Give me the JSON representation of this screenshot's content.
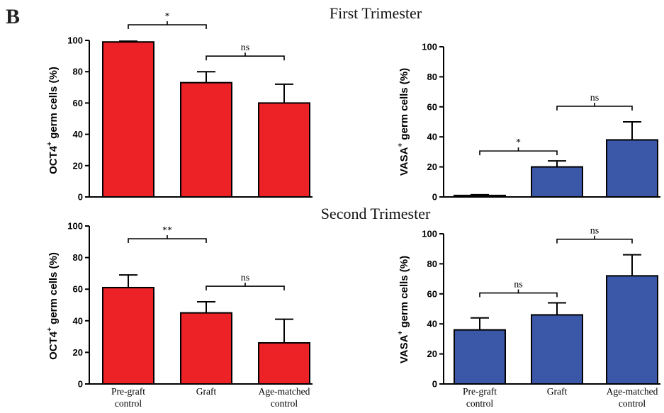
{
  "figure": {
    "panel_letter": "B",
    "sections": [
      {
        "title": "First Trimester"
      },
      {
        "title": "Second Trimester"
      }
    ],
    "colors": {
      "oct4": "#ec2227",
      "vasa": "#3b57a7"
    }
  },
  "chart_data": [
    {
      "id": "first-oct4",
      "type": "bar",
      "categories": [
        "Pre-graft control",
        "Graft",
        "Age-matched control"
      ],
      "values": [
        99,
        73,
        60
      ],
      "errors": [
        0.5,
        7,
        12
      ],
      "ylabel_main": "OCT4",
      "ylabel_sup": "+",
      "ylabel_rest": " germ cells (%)",
      "ylim": [
        0,
        100
      ],
      "yticks": [
        0,
        20,
        40,
        60,
        80,
        100
      ],
      "show_xlabels": false,
      "comparisons": [
        {
          "from": 0,
          "to": 1,
          "label": "*"
        },
        {
          "from": 1,
          "to": 2,
          "label": "ns"
        }
      ]
    },
    {
      "id": "first-vasa",
      "type": "bar",
      "categories": [
        "Pre-graft control",
        "Graft",
        "Age-matched control"
      ],
      "values": [
        1,
        20,
        38
      ],
      "errors": [
        0.5,
        4,
        12
      ],
      "ylabel_main": "VASA",
      "ylabel_sup": "+",
      "ylabel_rest": " germ cells (%)",
      "ylim": [
        0,
        100
      ],
      "yticks": [
        0,
        20,
        40,
        60,
        80,
        100
      ],
      "show_xlabels": false,
      "comparisons": [
        {
          "from": 0,
          "to": 1,
          "label": "*"
        },
        {
          "from": 1,
          "to": 2,
          "label": "ns"
        }
      ]
    },
    {
      "id": "second-oct4",
      "type": "bar",
      "categories": [
        "Pre-graft control",
        "Graft",
        "Age-matched control"
      ],
      "values": [
        61,
        45,
        26
      ],
      "errors": [
        8,
        7,
        15
      ],
      "ylabel_main": "OCT4",
      "ylabel_sup": "+",
      "ylabel_rest": " germ cells (%)",
      "ylim": [
        0,
        100
      ],
      "yticks": [
        0,
        20,
        40,
        60,
        80,
        100
      ],
      "show_xlabels": true,
      "xlabel_lines": [
        [
          "Pre-graft",
          "control"
        ],
        [
          "Graft"
        ],
        [
          "Age-matched",
          "control"
        ]
      ],
      "comparisons": [
        {
          "from": 0,
          "to": 1,
          "label": "**"
        },
        {
          "from": 1,
          "to": 2,
          "label": "ns"
        }
      ]
    },
    {
      "id": "second-vasa",
      "type": "bar",
      "categories": [
        "Pre-graft control",
        "Graft",
        "Age-matched control"
      ],
      "values": [
        36,
        46,
        72
      ],
      "errors": [
        8,
        8,
        14
      ],
      "ylabel_main": "VASA",
      "ylabel_sup": "+",
      "ylabel_rest": " germ cells (%)",
      "ylim": [
        0,
        100
      ],
      "yticks": [
        0,
        20,
        40,
        60,
        80,
        100
      ],
      "show_xlabels": true,
      "xlabel_lines": [
        [
          "Pre-graft",
          "control"
        ],
        [
          "Graft"
        ],
        [
          "Age-matched",
          "control"
        ]
      ],
      "comparisons": [
        {
          "from": 0,
          "to": 1,
          "label": "ns"
        },
        {
          "from": 1,
          "to": 2,
          "label": "ns"
        }
      ]
    }
  ]
}
